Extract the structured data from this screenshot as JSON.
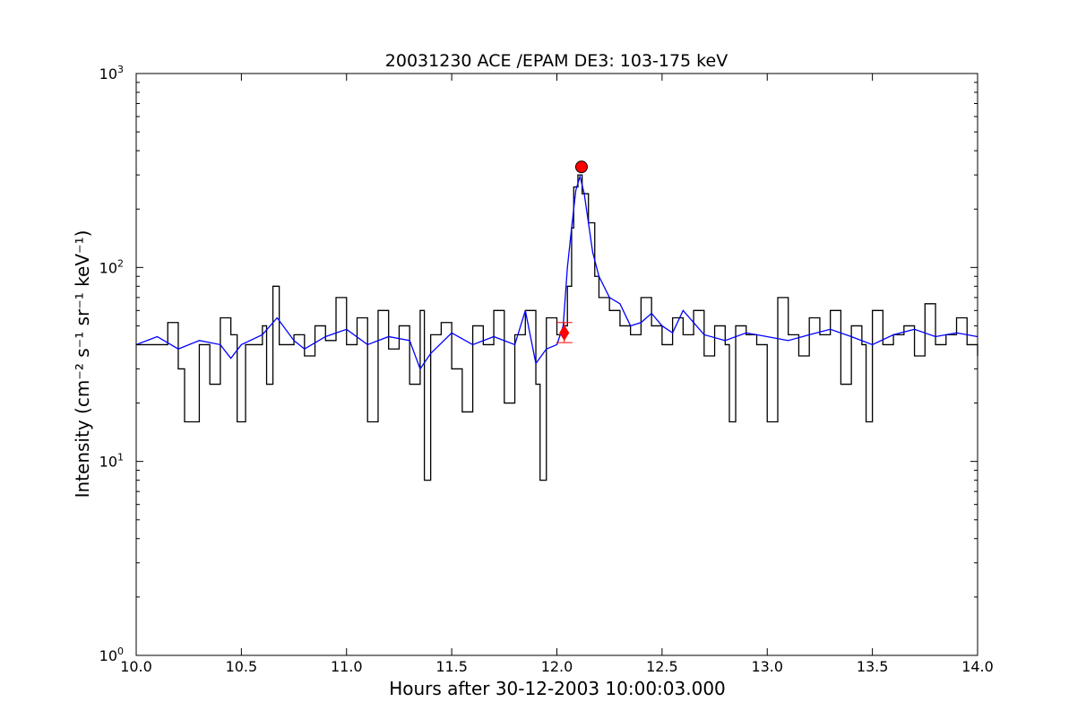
{
  "chart_data": {
    "type": "line",
    "title": "20031230 ACE /EPAM DE3: 103-175 keV",
    "xlabel": "Hours after 30-12-2003 10:00:03.000",
    "ylabel": "Intensity (cm⁻² s⁻¹ sr⁻¹ keV⁻¹)",
    "xlim": [
      10.0,
      14.0
    ],
    "ylim": [
      1,
      1000
    ],
    "yscale": "log",
    "grid": false,
    "x_ticks": [
      "10.0",
      "10.5",
      "11.0",
      "11.5",
      "12.0",
      "12.5",
      "13.0",
      "13.5",
      "14.0"
    ],
    "y_ticks": [
      {
        "base": "10",
        "exp": "0",
        "value": 1
      },
      {
        "base": "10",
        "exp": "1",
        "value": 10
      },
      {
        "base": "10",
        "exp": "2",
        "value": 100
      },
      {
        "base": "10",
        "exp": "3",
        "value": 1000
      }
    ],
    "series": [
      {
        "style": "steps",
        "color": "#000000",
        "x": [
          10.0,
          10.15,
          10.2,
          10.23,
          10.3,
          10.35,
          10.4,
          10.45,
          10.48,
          10.52,
          10.6,
          10.62,
          10.65,
          10.68,
          10.75,
          10.8,
          10.85,
          10.9,
          10.95,
          11.0,
          11.05,
          11.1,
          11.15,
          11.2,
          11.25,
          11.3,
          11.35,
          11.37,
          11.4,
          11.45,
          11.5,
          11.55,
          11.6,
          11.65,
          11.7,
          11.75,
          11.8,
          11.85,
          11.9,
          11.92,
          11.95,
          12.0,
          12.03,
          12.05,
          12.07,
          12.08,
          12.1,
          12.12,
          12.15,
          12.18,
          12.2,
          12.25,
          12.3,
          12.35,
          12.4,
          12.45,
          12.5,
          12.55,
          12.6,
          12.65,
          12.7,
          12.75,
          12.8,
          12.82,
          12.85,
          12.9,
          12.95,
          13.0,
          13.05,
          13.1,
          13.15,
          13.2,
          13.25,
          13.3,
          13.35,
          13.4,
          13.45,
          13.47,
          13.5,
          13.55,
          13.6,
          13.65,
          13.7,
          13.75,
          13.8,
          13.85,
          13.9,
          13.95,
          14.0
        ],
        "y": [
          40,
          52,
          30,
          16,
          40,
          25,
          55,
          45,
          16,
          40,
          50,
          25,
          80,
          40,
          45,
          35,
          50,
          42,
          70,
          40,
          55,
          16,
          60,
          38,
          50,
          25,
          60,
          8,
          45,
          52,
          30,
          18,
          50,
          40,
          60,
          20,
          45,
          60,
          25,
          8,
          55,
          45,
          50,
          80,
          160,
          260,
          300,
          240,
          170,
          90,
          70,
          60,
          50,
          45,
          70,
          50,
          40,
          55,
          45,
          60,
          35,
          50,
          40,
          16,
          50,
          45,
          40,
          16,
          70,
          45,
          35,
          55,
          45,
          60,
          25,
          50,
          40,
          16,
          60,
          40,
          45,
          50,
          35,
          65,
          40,
          45,
          55,
          40,
          35
        ]
      },
      {
        "style": "line",
        "color": "#0000ff",
        "x": [
          10.0,
          10.1,
          10.2,
          10.3,
          10.4,
          10.45,
          10.5,
          10.6,
          10.67,
          10.75,
          10.8,
          10.9,
          11.0,
          11.1,
          11.2,
          11.3,
          11.35,
          11.4,
          11.5,
          11.6,
          11.7,
          11.8,
          11.85,
          11.9,
          11.95,
          12.0,
          12.03,
          12.05,
          12.07,
          12.09,
          12.11,
          12.13,
          12.15,
          12.17,
          12.2,
          12.25,
          12.3,
          12.35,
          12.4,
          12.45,
          12.5,
          12.55,
          12.6,
          12.7,
          12.8,
          12.9,
          13.0,
          13.1,
          13.2,
          13.3,
          13.4,
          13.5,
          13.6,
          13.7,
          13.8,
          13.9,
          14.0
        ],
        "y": [
          40,
          44,
          38,
          42,
          40,
          34,
          40,
          45,
          55,
          42,
          38,
          44,
          48,
          40,
          44,
          42,
          30,
          36,
          46,
          40,
          44,
          40,
          60,
          32,
          38,
          40,
          50,
          100,
          160,
          250,
          295,
          240,
          170,
          120,
          90,
          70,
          65,
          50,
          52,
          58,
          50,
          46,
          60,
          45,
          42,
          46,
          44,
          42,
          45,
          48,
          44,
          40,
          45,
          48,
          44,
          46,
          44
        ]
      }
    ],
    "markers": [
      {
        "shape": "circle",
        "x": 12.117,
        "y": 330,
        "color": "#ff0000"
      },
      {
        "shape": "diamond",
        "x": 12.035,
        "y": 46,
        "color": "#ff0000",
        "error": [
          41,
          52
        ]
      }
    ]
  }
}
